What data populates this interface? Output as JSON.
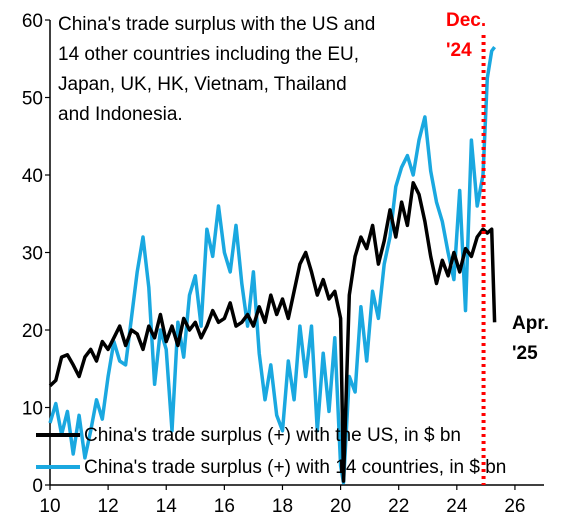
{
  "chart_data": {
    "type": "line",
    "title": "",
    "xlabel": "",
    "ylabel": "",
    "xlim": [
      2010,
      2027
    ],
    "ylim": [
      0,
      60
    ],
    "grid": false,
    "legend_position": "bottom-left",
    "x_ticks": [
      "10",
      "12",
      "14",
      "16",
      "18",
      "20",
      "22",
      "24",
      "26"
    ],
    "y_ticks": [
      "0",
      "10",
      "20",
      "30",
      "40",
      "50",
      "60"
    ],
    "annotation": {
      "lines": [
        "China's trade surplus with the US and",
        "14  other countries including the EU,",
        "Japan, UK, HK, Vietnam, Thailand",
        "and Indonesia."
      ]
    },
    "markers": {
      "dec24": {
        "x": 2024.92,
        "label_lines": [
          "Dec.",
          "'24"
        ],
        "color": "#ff0000"
      },
      "apr25": {
        "label_lines": [
          "Apr.",
          "'25"
        ]
      }
    },
    "series": [
      {
        "name": "China's trade surplus (+) with the US, in $ bn",
        "color": "#000000",
        "points": [
          [
            2010.0,
            12.8
          ],
          [
            2010.2,
            13.5
          ],
          [
            2010.4,
            16.5
          ],
          [
            2010.6,
            16.8
          ],
          [
            2010.8,
            15.5
          ],
          [
            2011.0,
            14.0
          ],
          [
            2011.2,
            16.5
          ],
          [
            2011.4,
            17.5
          ],
          [
            2011.6,
            16.0
          ],
          [
            2011.8,
            18.5
          ],
          [
            2012.0,
            17.5
          ],
          [
            2012.2,
            19.0
          ],
          [
            2012.4,
            20.5
          ],
          [
            2012.6,
            18.0
          ],
          [
            2012.8,
            20.0
          ],
          [
            2013.0,
            19.5
          ],
          [
            2013.2,
            17.5
          ],
          [
            2013.4,
            20.5
          ],
          [
            2013.6,
            19.0
          ],
          [
            2013.8,
            22.0
          ],
          [
            2014.0,
            18.5
          ],
          [
            2014.2,
            20.5
          ],
          [
            2014.4,
            18.0
          ],
          [
            2014.6,
            21.5
          ],
          [
            2014.8,
            20.0
          ],
          [
            2015.0,
            21.0
          ],
          [
            2015.2,
            19.0
          ],
          [
            2015.4,
            20.5
          ],
          [
            2015.6,
            22.5
          ],
          [
            2015.8,
            21.0
          ],
          [
            2016.0,
            21.5
          ],
          [
            2016.2,
            23.5
          ],
          [
            2016.4,
            20.5
          ],
          [
            2016.6,
            21.0
          ],
          [
            2016.8,
            22.0
          ],
          [
            2017.0,
            20.5
          ],
          [
            2017.2,
            23.0
          ],
          [
            2017.4,
            21.0
          ],
          [
            2017.6,
            24.5
          ],
          [
            2017.8,
            22.0
          ],
          [
            2018.0,
            24.0
          ],
          [
            2018.2,
            21.5
          ],
          [
            2018.4,
            25.0
          ],
          [
            2018.6,
            28.5
          ],
          [
            2018.8,
            30.0
          ],
          [
            2019.0,
            27.5
          ],
          [
            2019.2,
            24.5
          ],
          [
            2019.4,
            26.5
          ],
          [
            2019.6,
            24.0
          ],
          [
            2019.8,
            25.0
          ],
          [
            2020.0,
            21.5
          ],
          [
            2020.1,
            0.5
          ],
          [
            2020.3,
            24.5
          ],
          [
            2020.5,
            29.5
          ],
          [
            2020.7,
            32.0
          ],
          [
            2020.9,
            30.5
          ],
          [
            2021.1,
            33.5
          ],
          [
            2021.3,
            28.5
          ],
          [
            2021.5,
            31.5
          ],
          [
            2021.7,
            35.5
          ],
          [
            2021.9,
            32.0
          ],
          [
            2022.1,
            36.5
          ],
          [
            2022.3,
            33.5
          ],
          [
            2022.5,
            39.0
          ],
          [
            2022.7,
            37.5
          ],
          [
            2022.9,
            34.0
          ],
          [
            2023.1,
            29.5
          ],
          [
            2023.3,
            26.0
          ],
          [
            2023.5,
            29.0
          ],
          [
            2023.7,
            27.0
          ],
          [
            2023.9,
            30.0
          ],
          [
            2024.1,
            27.5
          ],
          [
            2024.3,
            30.5
          ],
          [
            2024.5,
            29.5
          ],
          [
            2024.7,
            32.0
          ],
          [
            2024.9,
            33.0
          ],
          [
            2025.05,
            32.5
          ],
          [
            2025.2,
            33.0
          ],
          [
            2025.3,
            21.0
          ]
        ]
      },
      {
        "name": "China's trade surplus (+) with 14 countries, in $ bn",
        "color": "#1aa8e0",
        "points": [
          [
            2010.0,
            8.0
          ],
          [
            2010.2,
            10.5
          ],
          [
            2010.4,
            6.5
          ],
          [
            2010.6,
            9.5
          ],
          [
            2010.8,
            4.0
          ],
          [
            2011.0,
            9.0
          ],
          [
            2011.2,
            3.5
          ],
          [
            2011.4,
            7.0
          ],
          [
            2011.6,
            11.0
          ],
          [
            2011.8,
            8.5
          ],
          [
            2012.0,
            14.0
          ],
          [
            2012.2,
            18.5
          ],
          [
            2012.4,
            16.0
          ],
          [
            2012.6,
            15.5
          ],
          [
            2012.8,
            21.5
          ],
          [
            2013.0,
            27.5
          ],
          [
            2013.2,
            32.0
          ],
          [
            2013.4,
            25.5
          ],
          [
            2013.6,
            13.0
          ],
          [
            2013.8,
            20.0
          ],
          [
            2014.0,
            17.5
          ],
          [
            2014.2,
            7.0
          ],
          [
            2014.4,
            21.0
          ],
          [
            2014.6,
            16.5
          ],
          [
            2014.8,
            24.5
          ],
          [
            2015.0,
            27.0
          ],
          [
            2015.2,
            20.5
          ],
          [
            2015.4,
            33.0
          ],
          [
            2015.6,
            29.5
          ],
          [
            2015.8,
            36.0
          ],
          [
            2016.0,
            30.0
          ],
          [
            2016.2,
            27.5
          ],
          [
            2016.4,
            33.5
          ],
          [
            2016.6,
            26.0
          ],
          [
            2016.8,
            20.5
          ],
          [
            2017.0,
            27.5
          ],
          [
            2017.2,
            17.0
          ],
          [
            2017.4,
            11.0
          ],
          [
            2017.6,
            15.5
          ],
          [
            2017.8,
            9.0
          ],
          [
            2018.0,
            7.0
          ],
          [
            2018.2,
            16.0
          ],
          [
            2018.4,
            11.0
          ],
          [
            2018.6,
            20.5
          ],
          [
            2018.8,
            14.0
          ],
          [
            2019.0,
            20.5
          ],
          [
            2019.2,
            7.0
          ],
          [
            2019.4,
            17.0
          ],
          [
            2019.6,
            9.5
          ],
          [
            2019.8,
            19.0
          ],
          [
            2020.0,
            2.5
          ],
          [
            2020.1,
            0.3
          ],
          [
            2020.3,
            14.0
          ],
          [
            2020.5,
            12.0
          ],
          [
            2020.7,
            23.0
          ],
          [
            2020.9,
            16.0
          ],
          [
            2021.1,
            25.0
          ],
          [
            2021.3,
            21.5
          ],
          [
            2021.5,
            28.5
          ],
          [
            2021.7,
            32.0
          ],
          [
            2021.9,
            38.5
          ],
          [
            2022.1,
            41.0
          ],
          [
            2022.3,
            42.5
          ],
          [
            2022.5,
            40.0
          ],
          [
            2022.7,
            44.5
          ],
          [
            2022.9,
            47.5
          ],
          [
            2023.1,
            40.5
          ],
          [
            2023.3,
            36.5
          ],
          [
            2023.5,
            34.0
          ],
          [
            2023.7,
            30.0
          ],
          [
            2023.9,
            26.5
          ],
          [
            2024.1,
            38.0
          ],
          [
            2024.3,
            22.5
          ],
          [
            2024.5,
            44.5
          ],
          [
            2024.7,
            36.0
          ],
          [
            2024.9,
            40.0
          ],
          [
            2025.05,
            52.5
          ],
          [
            2025.2,
            56.0
          ],
          [
            2025.3,
            56.5
          ]
        ]
      }
    ]
  }
}
